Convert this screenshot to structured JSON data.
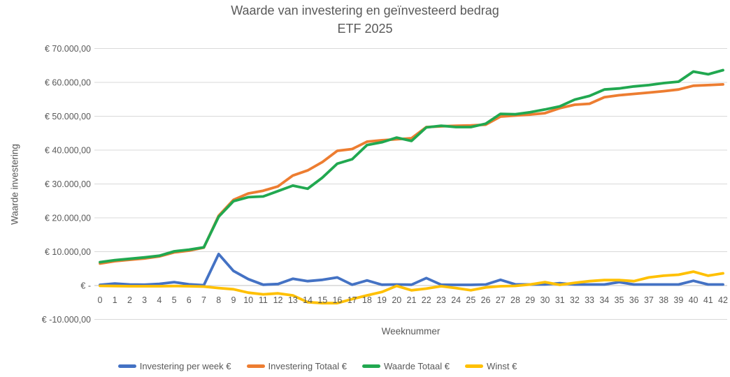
{
  "chart_data": {
    "type": "line",
    "title": "Waarde van investering en geïnvesteerd bedrag",
    "subtitle": "ETF 2025",
    "grid": true,
    "legend_position": "bottom",
    "background_color": "#ffffff",
    "text_color": "#595959",
    "gridline_color": "#d9d9d9",
    "zero_line_color": "#c0c0c0",
    "x_axis": {
      "title": "Weeknummer",
      "ticks": [
        0,
        1,
        2,
        3,
        4,
        5,
        6,
        7,
        8,
        9,
        10,
        11,
        12,
        13,
        14,
        15,
        16,
        17,
        18,
        19,
        20,
        21,
        22,
        23,
        24,
        25,
        26,
        27,
        28,
        29,
        30,
        31,
        32,
        33,
        34,
        35,
        36,
        37,
        38,
        39,
        40,
        41,
        42
      ]
    },
    "y_axis": {
      "title": "Waarde investering",
      "range": [
        -10000,
        70000
      ],
      "ticks": [
        {
          "value": 70000,
          "label": "€ 70.000,00"
        },
        {
          "value": 60000,
          "label": "€ 60.000,00"
        },
        {
          "value": 50000,
          "label": "€ 50.000,00"
        },
        {
          "value": 40000,
          "label": "€ 40.000,00"
        },
        {
          "value": 30000,
          "label": "€ 30.000,00"
        },
        {
          "value": 20000,
          "label": "€ 20.000,00"
        },
        {
          "value": 10000,
          "label": "€ 10.000,00"
        },
        {
          "value": 0,
          "label": "€ -"
        },
        {
          "value": -10000,
          "label": "€ -10.000,00"
        }
      ]
    },
    "series": [
      {
        "name": "Investering per week €",
        "color": "#4472C4",
        "values": [
          200,
          600,
          300,
          250,
          500,
          1000,
          350,
          100,
          9300,
          4300,
          1900,
          250,
          450,
          2000,
          1300,
          1700,
          2400,
          250,
          1500,
          250,
          300,
          250,
          2200,
          250,
          200,
          200,
          300,
          1700,
          350,
          300,
          350,
          700,
          300,
          300,
          300,
          1000,
          300,
          300,
          300,
          300,
          1400,
          300,
          300
        ]
      },
      {
        "name": "Investering Totaal €",
        "color": "#ED7D31",
        "values": [
          6500,
          7200,
          7600,
          8000,
          8600,
          9800,
          10300,
          11200,
          20600,
          25300,
          27200,
          28000,
          29300,
          32500,
          34000,
          36500,
          39800,
          40300,
          42500,
          42900,
          43200,
          43500,
          46800,
          47000,
          47200,
          47300,
          47500,
          49900,
          50200,
          50500,
          50900,
          52400,
          53400,
          53700,
          55600,
          56200,
          56600,
          57000,
          57400,
          57900,
          59000,
          59200,
          59400
        ]
      },
      {
        "name": "Waarde Totaal €",
        "color": "#21A850",
        "values": [
          6900,
          7500,
          7900,
          8300,
          8800,
          10100,
          10600,
          11300,
          20300,
          24900,
          26100,
          26300,
          27900,
          29500,
          28600,
          31900,
          36000,
          37300,
          41500,
          42300,
          43700,
          42700,
          46700,
          47200,
          46800,
          46800,
          47800,
          50700,
          50600,
          51200,
          52000,
          52900,
          54900,
          56000,
          57900,
          58200,
          58800,
          59200,
          59800,
          60200,
          63200,
          62400,
          63600
        ]
      },
      {
        "name": "Winst €",
        "color": "#FFC000",
        "values": [
          -100,
          -150,
          -200,
          -200,
          -200,
          -150,
          -200,
          -300,
          -750,
          -1100,
          -2100,
          -2600,
          -2300,
          -2900,
          -4900,
          -5200,
          -5200,
          -4000,
          -2900,
          -1900,
          -100,
          -1400,
          -900,
          -200,
          -750,
          -1400,
          -550,
          -200,
          -100,
          300,
          1000,
          200,
          800,
          1300,
          1600,
          1600,
          1300,
          2400,
          2900,
          3200,
          4100,
          2900,
          3600
        ]
      }
    ]
  }
}
